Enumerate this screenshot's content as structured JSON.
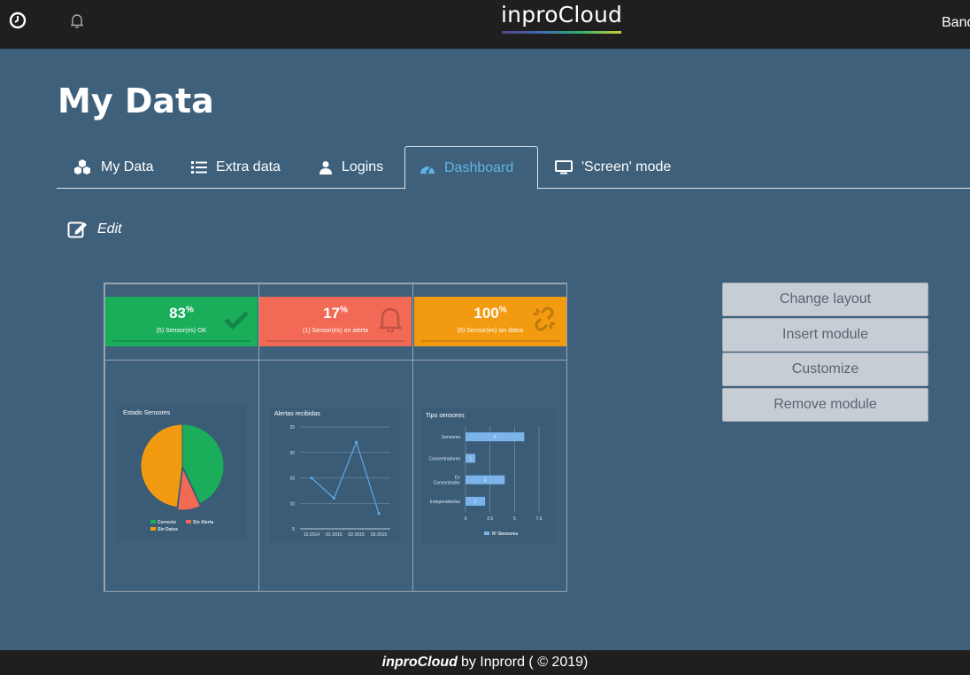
{
  "topbar": {
    "brand": "inproCloud",
    "user": "Band"
  },
  "page": {
    "title": "My Data"
  },
  "tabs": [
    {
      "label": "My Data",
      "icon": "cubes-icon"
    },
    {
      "label": "Extra data",
      "icon": "list-icon"
    },
    {
      "label": "Logins",
      "icon": "user-icon"
    },
    {
      "label": "Dashboard",
      "icon": "dashboard-icon",
      "active": true
    },
    {
      "label": "'Screen' mode",
      "icon": "monitor-icon"
    }
  ],
  "edit": {
    "label": "Edit"
  },
  "kpis": [
    {
      "value": "83",
      "unit": "%",
      "label": "(5) Sensor(es) OK",
      "color": "#1aad5a",
      "icon": "check-icon"
    },
    {
      "value": "17",
      "unit": "%",
      "label": "(1) Sensor(es) en alerta",
      "color": "#f26a55",
      "icon": "bell-icon"
    },
    {
      "value": "100",
      "unit": "%",
      "label": "(6) Sensor(es) sin datos",
      "color": "#f39b10",
      "icon": "broken-link-icon"
    }
  ],
  "chart_data": [
    {
      "type": "pie",
      "title": "Estado Sensores",
      "categories": [
        "Correcto",
        "Sin Alerta",
        "Sin Datos"
      ],
      "values": [
        43,
        9,
        48
      ],
      "colors": [
        "#1aad5a",
        "#f26a55",
        "#f39b10"
      ],
      "legend": "bottom"
    },
    {
      "type": "line",
      "title": "Alertas recibidas",
      "x": [
        "12-2014",
        "01-2015",
        "02-2015",
        "03-2015"
      ],
      "y": [
        15,
        11,
        22,
        8
      ],
      "ylim": [
        5,
        25
      ],
      "yticks": [
        "5",
        "10",
        "15",
        "20",
        "25"
      ],
      "color": "#5fa8e8",
      "grid": true
    },
    {
      "type": "bar",
      "orientation": "horizontal",
      "title": "Tipo sensores",
      "categories": [
        "Sensores",
        "Concentradores",
        "En Concentrador",
        "Independientes"
      ],
      "values": [
        6,
        1,
        4,
        2
      ],
      "xlim": [
        0,
        7.5
      ],
      "xticks": [
        "0",
        "2.5",
        "5",
        "7.5"
      ],
      "color": "#7ab4ea",
      "series_name": "Nº Sensores",
      "legend": "bottom"
    }
  ],
  "side_buttons": [
    "Change layout",
    "Insert module",
    "Customize",
    "Remove module"
  ],
  "footer": {
    "brand": "inproCloud",
    "text": "by Inprord ( © 2019)"
  }
}
